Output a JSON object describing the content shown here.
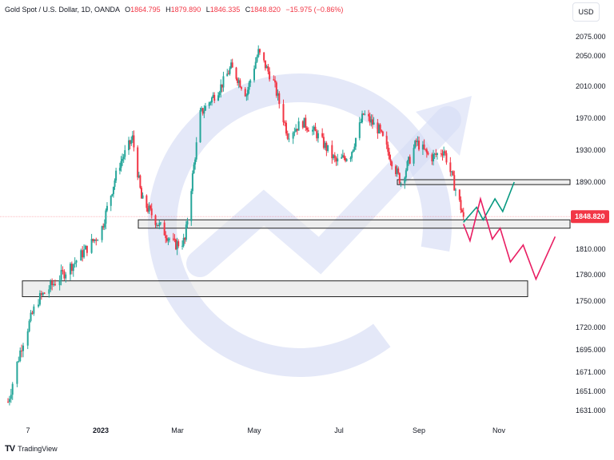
{
  "header": {
    "symbol": "Gold Spot / U.S. Dollar, 1D, OANDA",
    "open_label": "O",
    "open": "1864.795",
    "high_label": "H",
    "high": "1879.890",
    "low_label": "L",
    "low": "1846.335",
    "close_label": "C",
    "close": "1848.820",
    "change": "−15.975 (−0.86%)"
  },
  "currency_button": "USD",
  "footer": {
    "brand": "TradingView"
  },
  "colors": {
    "up": "#26a69a",
    "down": "#f23645",
    "watermark": "#d6dcf5",
    "zone_fill": "#e0e0e0",
    "bull_path": "#089981",
    "bear_path": "#e91e63"
  },
  "chart_data": {
    "type": "candlestick",
    "title": "Gold Spot / U.S. Dollar, 1D, OANDA",
    "x_tick_labels": [
      "7",
      "2023",
      "Mar",
      "May",
      "Jul",
      "Sep",
      "Nov"
    ],
    "y_tick_labels": [
      2075,
      2050,
      2010,
      1970,
      1930,
      1890,
      1850,
      1810,
      1780,
      1750,
      1720,
      1695,
      1671,
      1651,
      1631
    ],
    "last_price": "1848.820",
    "ylim": [
      1620,
      2085
    ],
    "price_path": [
      [
        "2022-11-01",
        1640
      ],
      [
        "2022-11-10",
        1700
      ],
      [
        "2022-11-20",
        1750
      ],
      [
        "2022-12-01",
        1770
      ],
      [
        "2022-12-15",
        1795
      ],
      [
        "2023-01-01",
        1830
      ],
      [
        "2023-01-15",
        1910
      ],
      [
        "2023-01-26",
        1945
      ],
      [
        "2023-02-02",
        1870
      ],
      [
        "2023-02-15",
        1840
      ],
      [
        "2023-02-28",
        1815
      ],
      [
        "2023-03-08",
        1820
      ],
      [
        "2023-03-20",
        1975
      ],
      [
        "2023-04-05",
        2010
      ],
      [
        "2023-04-13",
        2035
      ],
      [
        "2023-04-25",
        2000
      ],
      [
        "2023-05-04",
        2055
      ],
      [
        "2023-05-15",
        2015
      ],
      [
        "2023-05-25",
        1950
      ],
      [
        "2023-06-05",
        1965
      ],
      [
        "2023-06-15",
        1950
      ],
      [
        "2023-06-29",
        1915
      ],
      [
        "2023-07-10",
        1925
      ],
      [
        "2023-07-20",
        1975
      ],
      [
        "2023-08-01",
        1955
      ],
      [
        "2023-08-18",
        1890
      ],
      [
        "2023-08-30",
        1940
      ],
      [
        "2023-09-10",
        1920
      ],
      [
        "2023-09-20",
        1930
      ],
      [
        "2023-10-05",
        1848.82
      ]
    ],
    "zones": [
      {
        "from": 1887,
        "to": 1893
      },
      {
        "from": 1835,
        "to": 1845
      },
      {
        "from": 1755,
        "to": 1773
      }
    ],
    "bull_path": [
      [
        "2023-10-05",
        1842
      ],
      [
        "2023-10-15",
        1860
      ],
      [
        "2023-10-20",
        1845
      ],
      [
        "2023-10-29",
        1870
      ],
      [
        "2023-11-04",
        1855
      ],
      [
        "2023-11-13",
        1890
      ]
    ],
    "bear_path": [
      [
        "2023-10-05",
        1840
      ],
      [
        "2023-10-10",
        1820
      ],
      [
        "2023-10-18",
        1870
      ],
      [
        "2023-10-27",
        1822
      ],
      [
        "2023-11-02",
        1835
      ],
      [
        "2023-11-10",
        1795
      ],
      [
        "2023-11-20",
        1815
      ],
      [
        "2023-11-30",
        1775
      ],
      [
        "2023-12-15",
        1825
      ]
    ]
  }
}
